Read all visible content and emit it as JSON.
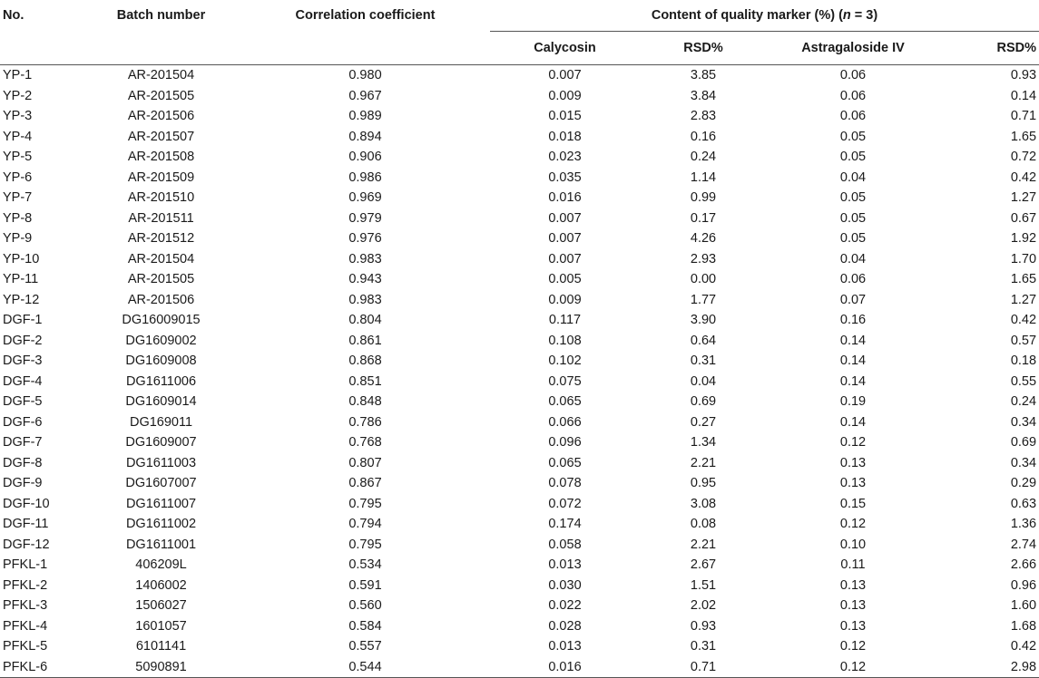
{
  "header": {
    "no": "No.",
    "batch": "Batch number",
    "correlation": "Correlation coefficient",
    "group_prefix": "Content of quality marker (%) (",
    "group_n": "n",
    "group_suffix": " = 3)",
    "calycosin": "Calycosin",
    "rsd1": "RSD%",
    "astragaloside": "Astragaloside IV",
    "rsd2": "RSD%"
  },
  "rows": [
    [
      "YP-1",
      "AR-201504",
      "0.980",
      "0.007",
      "3.85",
      "0.06",
      "0.93"
    ],
    [
      "YP-2",
      "AR-201505",
      "0.967",
      "0.009",
      "3.84",
      "0.06",
      "0.14"
    ],
    [
      "YP-3",
      "AR-201506",
      "0.989",
      "0.015",
      "2.83",
      "0.06",
      "0.71"
    ],
    [
      "YP-4",
      "AR-201507",
      "0.894",
      "0.018",
      "0.16",
      "0.05",
      "1.65"
    ],
    [
      "YP-5",
      "AR-201508",
      "0.906",
      "0.023",
      "0.24",
      "0.05",
      "0.72"
    ],
    [
      "YP-6",
      "AR-201509",
      "0.986",
      "0.035",
      "1.14",
      "0.04",
      "0.42"
    ],
    [
      "YP-7",
      "AR-201510",
      "0.969",
      "0.016",
      "0.99",
      "0.05",
      "1.27"
    ],
    [
      "YP-8",
      "AR-201511",
      "0.979",
      "0.007",
      "0.17",
      "0.05",
      "0.67"
    ],
    [
      "YP-9",
      "AR-201512",
      "0.976",
      "0.007",
      "4.26",
      "0.05",
      "1.92"
    ],
    [
      "YP-10",
      "AR-201504",
      "0.983",
      "0.007",
      "2.93",
      "0.04",
      "1.70"
    ],
    [
      "YP-11",
      "AR-201505",
      "0.943",
      "0.005",
      "0.00",
      "0.06",
      "1.65"
    ],
    [
      "YP-12",
      "AR-201506",
      "0.983",
      "0.009",
      "1.77",
      "0.07",
      "1.27"
    ],
    [
      "DGF-1",
      "DG16009015",
      "0.804",
      "0.117",
      "3.90",
      "0.16",
      "0.42"
    ],
    [
      "DGF-2",
      "DG1609002",
      "0.861",
      "0.108",
      "0.64",
      "0.14",
      "0.57"
    ],
    [
      "DGF-3",
      "DG1609008",
      "0.868",
      "0.102",
      "0.31",
      "0.14",
      "0.18"
    ],
    [
      "DGF-4",
      "DG1611006",
      "0.851",
      "0.075",
      "0.04",
      "0.14",
      "0.55"
    ],
    [
      "DGF-5",
      "DG1609014",
      "0.848",
      "0.065",
      "0.69",
      "0.19",
      "0.24"
    ],
    [
      "DGF-6",
      "DG169011",
      "0.786",
      "0.066",
      "0.27",
      "0.14",
      "0.34"
    ],
    [
      "DGF-7",
      "DG1609007",
      "0.768",
      "0.096",
      "1.34",
      "0.12",
      "0.69"
    ],
    [
      "DGF-8",
      "DG1611003",
      "0.807",
      "0.065",
      "2.21",
      "0.13",
      "0.34"
    ],
    [
      "DGF-9",
      "DG1607007",
      "0.867",
      "0.078",
      "0.95",
      "0.13",
      "0.29"
    ],
    [
      "DGF-10",
      "DG1611007",
      "0.795",
      "0.072",
      "3.08",
      "0.15",
      "0.63"
    ],
    [
      "DGF-11",
      "DG1611002",
      "0.794",
      "0.174",
      "0.08",
      "0.12",
      "1.36"
    ],
    [
      "DGF-12",
      "DG1611001",
      "0.795",
      "0.058",
      "2.21",
      "0.10",
      "2.74"
    ],
    [
      "PFKL-1",
      "406209L",
      "0.534",
      "0.013",
      "2.67",
      "0.11",
      "2.66"
    ],
    [
      "PFKL-2",
      "1406002",
      "0.591",
      "0.030",
      "1.51",
      "0.13",
      "0.96"
    ],
    [
      "PFKL-3",
      "1506027",
      "0.560",
      "0.022",
      "2.02",
      "0.13",
      "1.60"
    ],
    [
      "PFKL-4",
      "1601057",
      "0.584",
      "0.028",
      "0.93",
      "0.13",
      "1.68"
    ],
    [
      "PFKL-5",
      "6101141",
      "0.557",
      "0.013",
      "0.31",
      "0.12",
      "0.42"
    ],
    [
      "PFKL-6",
      "5090891",
      "0.544",
      "0.016",
      "0.71",
      "0.12",
      "2.98"
    ]
  ]
}
